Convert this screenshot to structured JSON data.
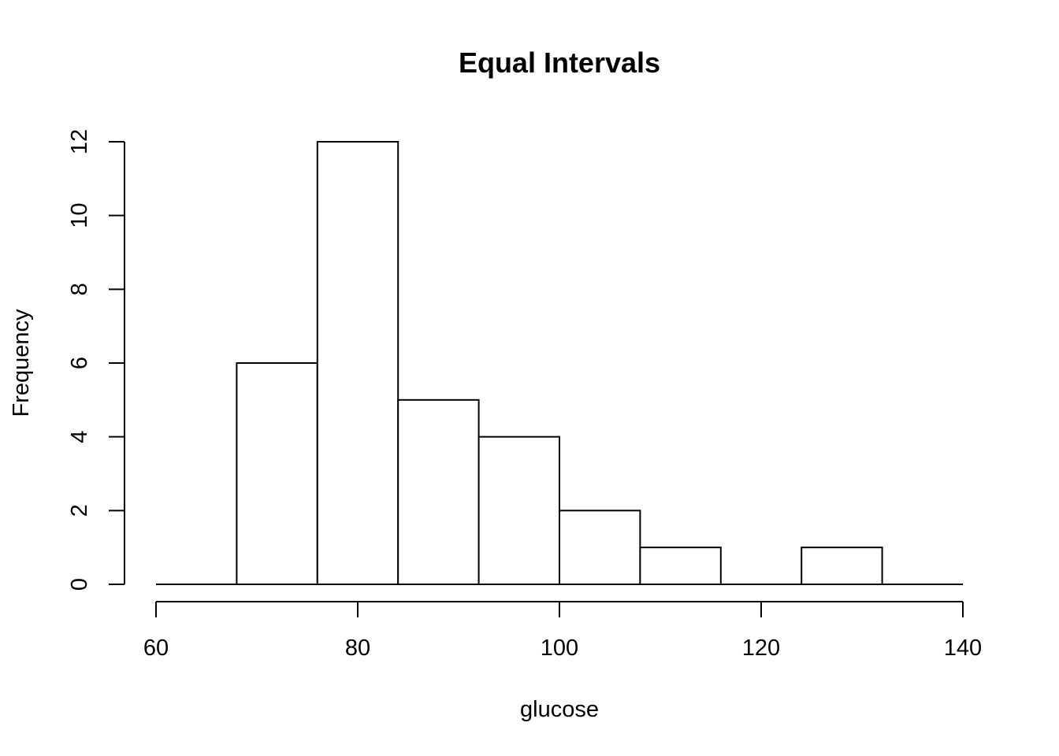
{
  "chart_data": {
    "type": "bar",
    "subtype": "histogram",
    "title": "Equal Intervals",
    "xlabel": "glucose",
    "ylabel": "Frequency",
    "bins": [
      {
        "start": 60,
        "end": 68,
        "count": 0
      },
      {
        "start": 68,
        "end": 76,
        "count": 6
      },
      {
        "start": 76,
        "end": 84,
        "count": 12
      },
      {
        "start": 84,
        "end": 92,
        "count": 5
      },
      {
        "start": 92,
        "end": 100,
        "count": 4
      },
      {
        "start": 100,
        "end": 108,
        "count": 2
      },
      {
        "start": 108,
        "end": 116,
        "count": 1
      },
      {
        "start": 116,
        "end": 124,
        "count": 0
      },
      {
        "start": 124,
        "end": 132,
        "count": 1
      },
      {
        "start": 132,
        "end": 140,
        "count": 0
      }
    ],
    "xlim": [
      60,
      140
    ],
    "ylim": [
      0,
      12
    ],
    "x_ticks": [
      60,
      80,
      100,
      120,
      140
    ],
    "y_ticks": [
      0,
      2,
      4,
      6,
      8,
      10,
      12
    ],
    "grid": false,
    "legend": "none",
    "bar_fill": "#ffffff",
    "bar_stroke": "#000000"
  }
}
